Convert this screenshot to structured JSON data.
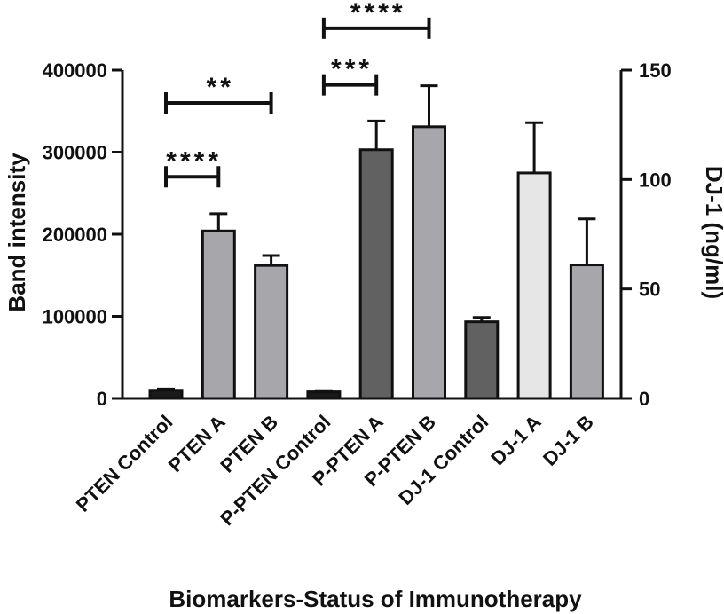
{
  "chart_data": {
    "type": "bar",
    "xlabel": "Biomarkers-Status of Immunotherapy",
    "ylabel_left": "Band intensity",
    "ylabel_right": "DJ-1 (ng/ml)",
    "ylim_left": [
      0,
      400000
    ],
    "yticks_left": [
      "0",
      "100000",
      "200000",
      "300000",
      "400000"
    ],
    "ylim_right": [
      0,
      150
    ],
    "yticks_right": [
      "0",
      "50",
      "100",
      "150"
    ],
    "grid": false,
    "legend": "none",
    "categories": [
      "PTEN Control",
      "PTEN A",
      "PTEN B",
      "P-PTEN Control",
      "P-PTEN A",
      "P-PTEN B",
      "DJ-1 Control",
      "DJ-1 A",
      "DJ-1 B"
    ],
    "bars": [
      {
        "category": "PTEN Control",
        "axis": "left",
        "value": 10000,
        "error": 1500,
        "color": "#1a1a1a"
      },
      {
        "category": "PTEN A",
        "axis": "left",
        "value": 204000,
        "error": 21000,
        "color": "#a6a6ab"
      },
      {
        "category": "PTEN B",
        "axis": "left",
        "value": 162000,
        "error": 12000,
        "color": "#a6a6ab"
      },
      {
        "category": "P-PTEN Control",
        "axis": "left",
        "value": 8000,
        "error": 1500,
        "color": "#1a1a1a"
      },
      {
        "category": "P-PTEN A",
        "axis": "left",
        "value": 303000,
        "error": 35000,
        "color": "#616161"
      },
      {
        "category": "P-PTEN B",
        "axis": "left",
        "value": 331000,
        "error": 50000,
        "color": "#a6a6ab"
      },
      {
        "category": "DJ-1 Control",
        "axis": "right",
        "value": 35,
        "error": 2,
        "color": "#616161"
      },
      {
        "category": "DJ-1 A",
        "axis": "right",
        "value": 103,
        "error": 23,
        "color": "#e6e6e6"
      },
      {
        "category": "DJ-1 B",
        "axis": "right",
        "value": 61,
        "error": 21,
        "color": "#a6a6ab"
      }
    ],
    "significance": [
      {
        "from": "PTEN Control",
        "to": "PTEN A",
        "label": "****",
        "level": 270000
      },
      {
        "from": "PTEN Control",
        "to": "PTEN B",
        "label": "**",
        "level": 360000
      },
      {
        "from": "P-PTEN Control",
        "to": "P-PTEN A",
        "label": "***",
        "level": 382000
      },
      {
        "from": "P-PTEN Control",
        "to": "P-PTEN B",
        "label": "****",
        "level": 451000
      }
    ]
  }
}
